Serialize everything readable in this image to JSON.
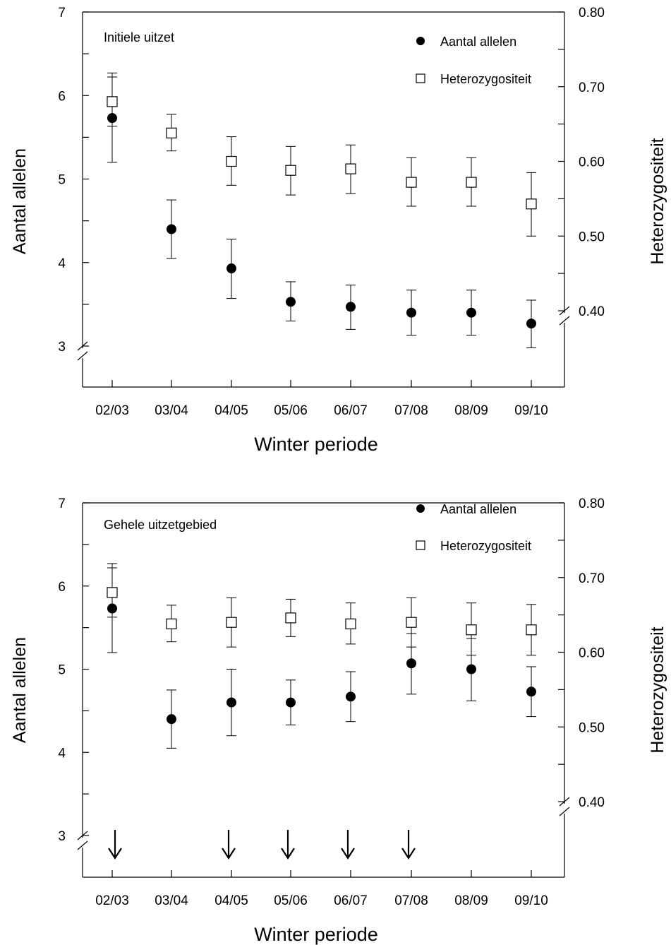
{
  "chart_data": [
    {
      "type": "scatter",
      "panel_label": "Initiele uitzet",
      "xlabel": "Winter periode",
      "ylabel_left": "Aantal allelen",
      "ylabel_right": "Heterozygositeit",
      "categories": [
        "02/03",
        "03/04",
        "04/05",
        "05/06",
        "06/07",
        "07/08",
        "08/09",
        "09/10"
      ],
      "left_axis": {
        "ylim": [
          3,
          7
        ],
        "ticks": [
          "3",
          "4",
          "5",
          "6",
          "7"
        ],
        "axis_break": true
      },
      "right_axis": {
        "ylim": [
          0.4,
          0.8
        ],
        "ticks": [
          "0.40",
          "0.50",
          "0.60",
          "0.70",
          "0.80"
        ],
        "axis_break": true
      },
      "series": [
        {
          "name": "Aantal allelen",
          "axis": "left",
          "marker": "filled-circle",
          "values": [
            5.73,
            4.4,
            3.93,
            3.53,
            3.47,
            3.4,
            3.4,
            3.27
          ],
          "error_upper": [
            6.27,
            4.75,
            4.28,
            3.77,
            3.73,
            3.67,
            3.67,
            3.55
          ],
          "error_lower": [
            5.2,
            4.05,
            3.57,
            3.3,
            3.2,
            3.13,
            3.13,
            2.98
          ]
        },
        {
          "name": "Heterozygositeit",
          "axis": "right",
          "marker": "open-square",
          "values": [
            0.68,
            0.638,
            0.6,
            0.588,
            0.59,
            0.572,
            0.572,
            0.543
          ],
          "error_upper": [
            0.713,
            0.663,
            0.633,
            0.62,
            0.622,
            0.605,
            0.605,
            0.585
          ],
          "error_lower": [
            0.647,
            0.614,
            0.568,
            0.555,
            0.557,
            0.54,
            0.54,
            0.5
          ]
        }
      ],
      "legend_position": "top-right",
      "grid": false
    },
    {
      "type": "scatter",
      "panel_label": "Gehele uitzetgebied",
      "xlabel": "Winter periode",
      "ylabel_left": "Aantal allelen",
      "ylabel_right": "Heterozygositeit",
      "categories": [
        "02/03",
        "03/04",
        "04/05",
        "05/06",
        "06/07",
        "07/08",
        "08/09",
        "09/10"
      ],
      "left_axis": {
        "ylim": [
          3,
          7
        ],
        "ticks": [
          "3",
          "4",
          "5",
          "6",
          "7"
        ],
        "axis_break": true
      },
      "right_axis": {
        "ylim": [
          0.4,
          0.8
        ],
        "ticks": [
          "0.40",
          "0.50",
          "0.60",
          "0.70",
          "0.80"
        ],
        "axis_break": true
      },
      "series": [
        {
          "name": "Aantal allelen",
          "axis": "left",
          "marker": "filled-circle",
          "values": [
            5.73,
            4.4,
            4.6,
            4.6,
            4.67,
            5.07,
            5.0,
            4.73
          ],
          "error_upper": [
            6.27,
            4.75,
            5.0,
            4.87,
            4.97,
            5.43,
            5.37,
            5.03
          ],
          "error_lower": [
            5.2,
            4.05,
            4.2,
            4.33,
            4.37,
            4.7,
            4.62,
            4.43
          ]
        },
        {
          "name": "Heterozygositeit",
          "axis": "right",
          "marker": "open-square",
          "values": [
            0.68,
            0.638,
            0.64,
            0.646,
            0.638,
            0.64,
            0.63,
            0.63
          ],
          "error_upper": [
            0.713,
            0.663,
            0.673,
            0.671,
            0.666,
            0.673,
            0.666,
            0.664
          ],
          "error_lower": [
            0.647,
            0.614,
            0.607,
            0.621,
            0.611,
            0.607,
            0.596,
            0.596
          ]
        }
      ],
      "arrows_at": [
        "02/03",
        "04/05",
        "05/06",
        "06/07",
        "07/08"
      ],
      "legend_position": "top-right",
      "grid": false
    }
  ]
}
